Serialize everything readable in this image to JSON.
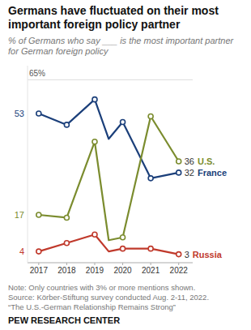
{
  "chart_data": {
    "type": "line",
    "title": "Germans have fluctuated on their most important foreign policy partner",
    "subtitle": "% of Germans who say ___ is the most important partner for German foreign policy",
    "x": [
      2017,
      2018,
      2019,
      2019.5,
      2020,
      2021,
      2022
    ],
    "series": [
      {
        "name": "France",
        "color": "#1b3f7a",
        "values": [
          53,
          49,
          58,
          44,
          50,
          30,
          32
        ]
      },
      {
        "name": "U.S.",
        "color": "#7b8c2e",
        "values": [
          17,
          16,
          43,
          8,
          9,
          52,
          36
        ]
      },
      {
        "name": "Russia",
        "color": "#c0392b",
        "values": [
          4,
          7,
          10,
          4,
          5,
          5,
          3
        ]
      }
    ],
    "xlim": [
      2016.6,
      2022.5
    ],
    "xticks": [
      2017,
      2018,
      2019,
      2020,
      2021,
      2022
    ],
    "ylim": [
      0,
      70
    ],
    "yticks": [
      {
        "value": 65,
        "label": "65%"
      }
    ],
    "grid": true,
    "marker": "circle",
    "annotations": [
      "Note: Only countries with 3% or more mentions shown.",
      "Source: Körber-Stiftung survey conducted Aug. 2-11, 2022.",
      "“The U.S.-German Relationship Remains Strong”",
      "PEW RESEARCH CENTER"
    ]
  }
}
